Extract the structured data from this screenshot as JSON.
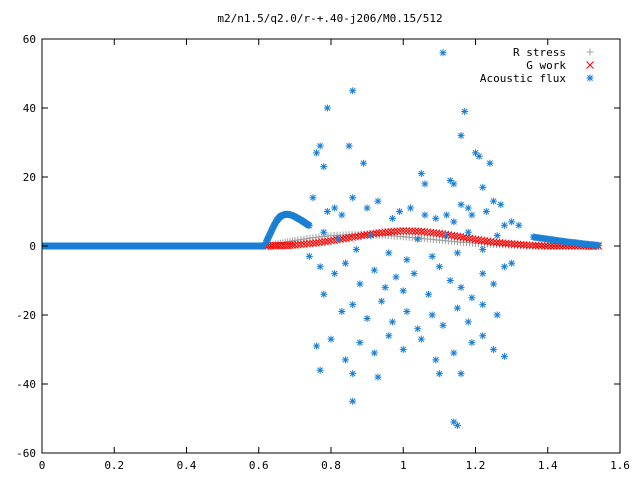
{
  "chart_data": {
    "type": "scatter",
    "title": "m2/n1.5/q2.0/r-+.40-j206/M0.15/512",
    "xlim": [
      0,
      1.6
    ],
    "ylim": [
      -60,
      60
    ],
    "x_ticks": [
      "0",
      "0.2",
      "0.4",
      "0.6",
      "0.8",
      "1",
      "1.2",
      "1.4",
      "1.6"
    ],
    "y_ticks": [
      "60",
      "40",
      "20",
      "0",
      "-20",
      "-40",
      "-60"
    ],
    "x_tick_values": [
      0,
      0.2,
      0.4,
      0.6,
      0.8,
      1.0,
      1.2,
      1.4,
      1.6
    ],
    "y_tick_values": [
      60,
      40,
      20,
      0,
      -20,
      -40,
      -60
    ],
    "grid": false,
    "legend_position": "top-right",
    "legend": [
      {
        "label": "R stress",
        "marker": "plus",
        "color": "#a0a0a0"
      },
      {
        "label": "G work",
        "marker": "cross",
        "color": "#ff0000"
      },
      {
        "label": "Acoustic flux",
        "marker": "star",
        "color": "#1a7fd4"
      }
    ],
    "series": [
      {
        "name": "R stress",
        "marker": "plus",
        "color": "#a0a0a0",
        "points": [
          [
            0.62,
            0.2
          ],
          [
            0.66,
            0.8
          ],
          [
            0.7,
            1.6
          ],
          [
            0.75,
            2.4
          ],
          [
            0.8,
            3.0
          ],
          [
            0.85,
            3.3
          ],
          [
            0.9,
            3.3
          ],
          [
            0.95,
            3.1
          ],
          [
            1.0,
            2.7
          ],
          [
            1.05,
            2.2
          ],
          [
            1.1,
            1.7
          ],
          [
            1.15,
            1.2
          ],
          [
            1.2,
            0.8
          ],
          [
            1.25,
            0.5
          ],
          [
            1.3,
            0.2
          ],
          [
            1.35,
            0.0
          ],
          [
            1.4,
            0.0
          ],
          [
            1.45,
            0.0
          ],
          [
            1.5,
            0.0
          ],
          [
            1.54,
            0.0
          ]
        ]
      },
      {
        "name": "G work",
        "marker": "cross",
        "color": "#ff0000",
        "points": [
          [
            0.62,
            0.0
          ],
          [
            0.66,
            0.1
          ],
          [
            0.7,
            0.3
          ],
          [
            0.75,
            0.8
          ],
          [
            0.8,
            1.5
          ],
          [
            0.85,
            2.4
          ],
          [
            0.9,
            3.3
          ],
          [
            0.95,
            4.0
          ],
          [
            1.0,
            4.4
          ],
          [
            1.05,
            4.2
          ],
          [
            1.1,
            3.6
          ],
          [
            1.15,
            2.8
          ],
          [
            1.2,
            1.9
          ],
          [
            1.25,
            1.1
          ],
          [
            1.3,
            0.6
          ],
          [
            1.35,
            0.2
          ],
          [
            1.4,
            0.0
          ],
          [
            1.45,
            0.0
          ],
          [
            1.5,
            0.0
          ],
          [
            1.54,
            0.0
          ]
        ]
      },
      {
        "name": "Acoustic flux",
        "marker": "star",
        "color": "#1a7fd4",
        "baseline": {
          "x_start": 0.0,
          "x_end": 0.62,
          "y": 0
        },
        "hump": [
          [
            0.62,
            1.0
          ],
          [
            0.63,
            3.2
          ],
          [
            0.64,
            5.5
          ],
          [
            0.65,
            7.4
          ],
          [
            0.66,
            8.6
          ],
          [
            0.67,
            9.1
          ],
          [
            0.68,
            9.2
          ],
          [
            0.69,
            9.0
          ],
          [
            0.7,
            8.5
          ],
          [
            0.71,
            7.9
          ],
          [
            0.72,
            7.3
          ],
          [
            0.73,
            6.6
          ],
          [
            0.74,
            5.9
          ]
        ],
        "tail": [
          [
            1.36,
            2.6
          ],
          [
            1.38,
            2.3
          ],
          [
            1.4,
            2.0
          ],
          [
            1.42,
            1.7
          ],
          [
            1.44,
            1.4
          ],
          [
            1.46,
            1.1
          ],
          [
            1.48,
            0.9
          ],
          [
            1.5,
            0.6
          ],
          [
            1.52,
            0.4
          ],
          [
            1.54,
            0.2
          ]
        ],
        "points": [
          [
            1.11,
            56
          ],
          [
            0.86,
            45
          ],
          [
            0.79,
            40
          ],
          [
            1.17,
            39
          ],
          [
            0.76,
            27
          ],
          [
            0.77,
            29
          ],
          [
            0.78,
            23
          ],
          [
            0.85,
            29
          ],
          [
            1.16,
            32
          ],
          [
            0.89,
            24
          ],
          [
            1.05,
            21
          ],
          [
            1.06,
            18
          ],
          [
            1.13,
            19
          ],
          [
            1.14,
            18
          ],
          [
            1.2,
            27
          ],
          [
            1.21,
            26
          ],
          [
            1.24,
            24
          ],
          [
            1.22,
            17
          ],
          [
            1.16,
            12
          ],
          [
            1.18,
            11
          ],
          [
            0.75,
            14
          ],
          [
            0.79,
            10
          ],
          [
            0.81,
            11
          ],
          [
            0.83,
            9
          ],
          [
            0.86,
            14
          ],
          [
            0.9,
            11
          ],
          [
            0.93,
            13
          ],
          [
            0.97,
            8
          ],
          [
            0.99,
            10
          ],
          [
            1.02,
            11
          ],
          [
            1.06,
            9
          ],
          [
            1.09,
            8
          ],
          [
            1.12,
            9
          ],
          [
            1.14,
            7
          ],
          [
            1.19,
            9
          ],
          [
            1.23,
            10
          ],
          [
            1.25,
            13
          ],
          [
            1.27,
            12
          ],
          [
            1.28,
            6
          ],
          [
            1.3,
            7
          ],
          [
            1.32,
            6
          ],
          [
            0.78,
            4
          ],
          [
            0.82,
            2
          ],
          [
            0.87,
            -1
          ],
          [
            0.91,
            3
          ],
          [
            0.96,
            -2
          ],
          [
            1.01,
            -4
          ],
          [
            1.04,
            2
          ],
          [
            1.08,
            -3
          ],
          [
            1.12,
            3
          ],
          [
            1.15,
            -2
          ],
          [
            1.18,
            4
          ],
          [
            1.22,
            -1
          ],
          [
            1.26,
            3
          ],
          [
            1.3,
            -5
          ],
          [
            0.74,
            -3
          ],
          [
            0.77,
            -6
          ],
          [
            0.81,
            -8
          ],
          [
            0.84,
            -5
          ],
          [
            0.88,
            -11
          ],
          [
            0.92,
            -7
          ],
          [
            0.95,
            -12
          ],
          [
            0.98,
            -9
          ],
          [
            1.0,
            -13
          ],
          [
            1.03,
            -8
          ],
          [
            1.07,
            -14
          ],
          [
            1.1,
            -6
          ],
          [
            1.13,
            -10
          ],
          [
            1.16,
            -12
          ],
          [
            1.19,
            -15
          ],
          [
            1.22,
            -8
          ],
          [
            1.25,
            -11
          ],
          [
            1.28,
            -6
          ],
          [
            0.78,
            -14
          ],
          [
            0.83,
            -19
          ],
          [
            0.86,
            -17
          ],
          [
            0.9,
            -21
          ],
          [
            0.94,
            -16
          ],
          [
            0.97,
            -22
          ],
          [
            1.01,
            -19
          ],
          [
            1.04,
            -24
          ],
          [
            1.08,
            -20
          ],
          [
            1.11,
            -23
          ],
          [
            1.15,
            -18
          ],
          [
            1.18,
            -22
          ],
          [
            1.22,
            -17
          ],
          [
            1.26,
            -20
          ],
          [
            0.76,
            -29
          ],
          [
            0.8,
            -27
          ],
          [
            0.84,
            -33
          ],
          [
            0.88,
            -28
          ],
          [
            0.92,
            -31
          ],
          [
            0.96,
            -26
          ],
          [
            1.0,
            -30
          ],
          [
            1.05,
            -27
          ],
          [
            1.09,
            -33
          ],
          [
            1.14,
            -31
          ],
          [
            1.19,
            -28
          ],
          [
            1.25,
            -30
          ],
          [
            1.28,
            -32
          ],
          [
            0.77,
            -36
          ],
          [
            0.86,
            -37
          ],
          [
            1.1,
            -37
          ],
          [
            1.16,
            -37
          ],
          [
            0.86,
            -45
          ],
          [
            1.14,
            -51
          ],
          [
            1.15,
            -52
          ],
          [
            0.93,
            -38
          ],
          [
            1.22,
            -26
          ]
        ]
      }
    ]
  }
}
